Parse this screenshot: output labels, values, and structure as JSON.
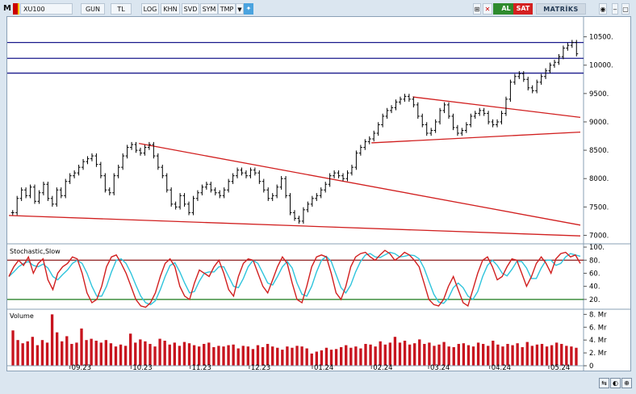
{
  "toolbar": {
    "m_label": "M",
    "symbol": "XU100",
    "period": "GUN",
    "currency": "TL",
    "buttons": [
      "LOG",
      "KHN",
      "SVD",
      "SYM",
      "TMP"
    ],
    "buy_label": "AL",
    "sell_label": "SAT",
    "brand": "MATRİKS",
    "colors": {
      "buy": "#2e8b2e",
      "sell": "#d42020",
      "brand_bg": "#cfd9e3"
    }
  },
  "icons": [
    "dropdown-arrow-icon",
    "twitter-icon",
    "expand-icon",
    "close-icon",
    "refresh-icon",
    "minimize-icon",
    "maximize-icon",
    "scroll-icon",
    "lock-icon",
    "zoom-icon"
  ],
  "chart_data": [
    {
      "type": "candlestick",
      "name": "XU100 price",
      "y_ticks": [
        "7000.",
        "7500.",
        "8000.",
        "8500.",
        "9000.",
        "9500.",
        "10000.",
        "10500."
      ],
      "ylim": [
        6850,
        10850
      ],
      "y_tick_values": [
        7000,
        7500,
        8000,
        8500,
        9000,
        9500,
        10000,
        10500
      ],
      "x_ticks": [
        "09.23",
        "10.23",
        "11.23",
        "12.23",
        "01.24",
        "02.24",
        "03.24",
        "04.24",
        "05.24"
      ],
      "close_series": [
        7400,
        7650,
        7800,
        7700,
        7850,
        7600,
        7750,
        7900,
        7650,
        7550,
        7800,
        7700,
        7950,
        8050,
        8100,
        8200,
        8300,
        8350,
        8400,
        8250,
        8050,
        7800,
        7750,
        8050,
        8200,
        8400,
        8550,
        8600,
        8500,
        8450,
        8550,
        8600,
        8400,
        8200,
        8050,
        7800,
        7550,
        7500,
        7700,
        7550,
        7400,
        7650,
        7750,
        7850,
        7900,
        7800,
        7750,
        7700,
        7800,
        7950,
        8050,
        8150,
        8100,
        8050,
        8150,
        8100,
        7950,
        7800,
        7650,
        7700,
        7850,
        8000,
        7700,
        7400,
        7300,
        7250,
        7450,
        7550,
        7650,
        7700,
        7800,
        7900,
        8050,
        8100,
        8050,
        8000,
        8100,
        8200,
        8450,
        8550,
        8650,
        8700,
        8800,
        8950,
        9100,
        9200,
        9250,
        9350,
        9400,
        9450,
        9400,
        9300,
        9100,
        8950,
        8800,
        8850,
        9000,
        9200,
        9300,
        9100,
        8900,
        8800,
        8850,
        8950,
        9100,
        9150,
        9200,
        9150,
        9000,
        8950,
        9000,
        9150,
        9400,
        9700,
        9800,
        9850,
        9750,
        9600,
        9550,
        9700,
        9800,
        9900,
        10000,
        10050,
        10150,
        10300,
        10350,
        10400,
        10200
      ],
      "horizontal_lines": [
        10400,
        10120,
        9860
      ],
      "trendlines": [
        {
          "from": {
            "x": "2023-10-06",
            "y": 8620
          },
          "to": {
            "x": "2024-05-17",
            "y": 7180
          }
        },
        {
          "from": {
            "x": "2023-08-01",
            "y": 7350
          },
          "to": {
            "x": "2024-05-17",
            "y": 6990
          }
        },
        {
          "from": {
            "x": "2024-02-22",
            "y": 9440
          },
          "to": {
            "x": "2024-05-17",
            "y": 9080
          }
        },
        {
          "from": {
            "x": "2024-02-01",
            "y": 8630
          },
          "to": {
            "x": "2024-05-17",
            "y": 8820
          }
        }
      ],
      "colors": {
        "candles": "#000000",
        "hlines": "#1a1a8c",
        "trendlines": "#d11f1f"
      }
    },
    {
      "type": "line",
      "title": "Stochastic,Slow",
      "y_ticks": [
        "20.",
        "40.",
        "60.",
        "80.",
        "100."
      ],
      "ylim": [
        5,
        105
      ],
      "y_tick_values": [
        20,
        40,
        60,
        80,
        100
      ],
      "levels": [
        80,
        20
      ],
      "series": [
        {
          "color": "#d11f1f",
          "values": [
            55,
            70,
            80,
            72,
            85,
            60,
            75,
            82,
            50,
            35,
            60,
            70,
            75,
            85,
            82,
            60,
            30,
            15,
            20,
            40,
            70,
            85,
            88,
            75,
            60,
            40,
            20,
            10,
            8,
            15,
            30,
            55,
            75,
            82,
            70,
            40,
            25,
            20,
            45,
            65,
            60,
            55,
            70,
            80,
            60,
            35,
            25,
            55,
            75,
            82,
            80,
            60,
            40,
            30,
            50,
            70,
            85,
            75,
            45,
            20,
            15,
            40,
            70,
            85,
            88,
            85,
            60,
            30,
            20,
            40,
            70,
            85,
            90,
            92,
            85,
            80,
            88,
            95,
            90,
            80,
            85,
            92,
            88,
            80,
            70,
            45,
            20,
            12,
            10,
            20,
            40,
            55,
            35,
            15,
            10,
            35,
            60,
            80,
            85,
            70,
            50,
            55,
            70,
            82,
            80,
            60,
            40,
            55,
            75,
            85,
            75,
            60,
            82,
            90,
            92,
            85,
            88,
            75
          ]
        },
        {
          "color": "#2ec4dc",
          "values": [
            55,
            62,
            70,
            75,
            78,
            72,
            70,
            74,
            68,
            55,
            50,
            58,
            65,
            75,
            80,
            75,
            60,
            40,
            25,
            25,
            40,
            62,
            80,
            82,
            75,
            60,
            42,
            25,
            15,
            12,
            18,
            35,
            55,
            72,
            76,
            62,
            45,
            30,
            32,
            48,
            60,
            62,
            62,
            70,
            70,
            55,
            40,
            38,
            52,
            70,
            80,
            75,
            60,
            45,
            42,
            55,
            70,
            78,
            68,
            45,
            28,
            25,
            40,
            62,
            80,
            86,
            78,
            58,
            38,
            30,
            42,
            62,
            78,
            88,
            90,
            85,
            84,
            88,
            92,
            90,
            85,
            86,
            88,
            87,
            82,
            68,
            48,
            28,
            16,
            14,
            22,
            38,
            45,
            38,
            25,
            20,
            32,
            55,
            72,
            80,
            72,
            60,
            56,
            66,
            78,
            78,
            68,
            52,
            52,
            68,
            80,
            80,
            72,
            75,
            85,
            90,
            88,
            86
          ]
        }
      ]
    },
    {
      "type": "bar",
      "title": "Volume",
      "y_ticks": [
        "0",
        "2. Mr",
        "4. Mr",
        "6. Mr",
        "8. Mr"
      ],
      "ylim": [
        0,
        8.8
      ],
      "y_tick_values": [
        0,
        2,
        4,
        6,
        8
      ],
      "unit": "Mr",
      "color": "#c8141e",
      "values": [
        5.5,
        4.0,
        3.5,
        3.8,
        4.5,
        3.2,
        4.0,
        3.6,
        8.0,
        5.2,
        3.8,
        4.6,
        3.4,
        3.6,
        5.8,
        4.0,
        4.2,
        3.9,
        3.6,
        4.0,
        3.5,
        3.0,
        3.3,
        3.1,
        5.0,
        3.6,
        4.1,
        3.8,
        3.4,
        3.0,
        4.2,
        3.9,
        3.3,
        3.6,
        3.1,
        3.7,
        3.5,
        3.2,
        3.0,
        3.4,
        3.6,
        2.9,
        3.1,
        3.0,
        3.2,
        3.3,
        2.7,
        3.1,
        3.0,
        2.6,
        3.2,
        2.9,
        3.4,
        3.0,
        2.8,
        2.5,
        3.0,
        2.8,
        3.1,
        3.0,
        2.7,
        1.9,
        2.2,
        2.4,
        2.8,
        2.5,
        2.6,
        2.9,
        3.2,
        2.8,
        3.0,
        2.7,
        3.4,
        3.3,
        3.0,
        3.8,
        3.3,
        3.6,
        4.5,
        3.6,
        3.9,
        3.3,
        3.5,
        4.1,
        3.4,
        3.6,
        3.1,
        3.3,
        3.7,
        3.0,
        2.9,
        3.4,
        3.5,
        3.2,
        3.0,
        3.6,
        3.4,
        3.1,
        3.9,
        3.3,
        3.0,
        3.4,
        3.2,
        3.5,
        2.9,
        3.7,
        3.1,
        3.3,
        3.4,
        3.0,
        3.2,
        3.6,
        3.4,
        3.1,
        3.0,
        2.8
      ]
    }
  ]
}
